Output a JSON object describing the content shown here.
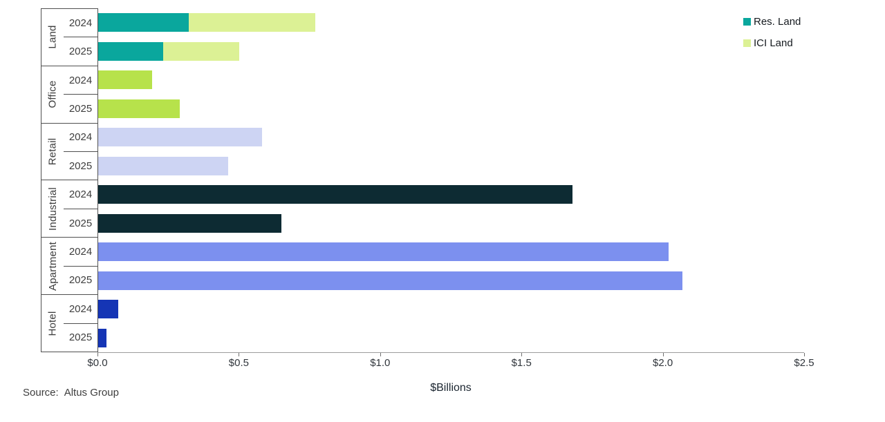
{
  "legend": {
    "items": [
      {
        "label": "Res. Land",
        "color": "#0aa79d"
      },
      {
        "label": "ICI Land",
        "color": "#dcf195"
      }
    ]
  },
  "x_axis": {
    "title": "$Billions",
    "ticks": [
      "$0.0",
      "$0.5",
      "$1.0",
      "$1.5",
      "$2.0",
      "$2.5"
    ],
    "min": 0,
    "max": 2.5
  },
  "source": {
    "prefix": "Source:",
    "text": "Altus Group"
  },
  "chart_data": {
    "type": "bar",
    "orientation": "horizontal",
    "unit": "$Billions",
    "xlabel": "$Billions",
    "xlim": [
      0,
      2.5
    ],
    "grid": false,
    "legend_position": "top-right",
    "legend_series": [
      "Res. Land",
      "ICI Land"
    ],
    "groups": [
      {
        "sector": "Land",
        "rows": [
          {
            "year": "2024",
            "segments": [
              {
                "series": "Res. Land",
                "value": 0.32,
                "color": "#0aa79d"
              },
              {
                "series": "ICI Land",
                "value": 0.45,
                "color": "#dcf195"
              }
            ]
          },
          {
            "year": "2025",
            "segments": [
              {
                "series": "Res. Land",
                "value": 0.23,
                "color": "#0aa79d"
              },
              {
                "series": "ICI Land",
                "value": 0.27,
                "color": "#dcf195"
              }
            ]
          }
        ]
      },
      {
        "sector": "Office",
        "rows": [
          {
            "year": "2024",
            "segments": [
              {
                "series": "Office",
                "value": 0.19,
                "color": "#b7e24b"
              }
            ]
          },
          {
            "year": "2025",
            "segments": [
              {
                "series": "Office",
                "value": 0.29,
                "color": "#b7e24b"
              }
            ]
          }
        ]
      },
      {
        "sector": "Retail",
        "rows": [
          {
            "year": "2024",
            "segments": [
              {
                "series": "Retail",
                "value": 0.58,
                "color": "#cdd4f3"
              }
            ]
          },
          {
            "year": "2025",
            "segments": [
              {
                "series": "Retail",
                "value": 0.46,
                "color": "#cdd4f3"
              }
            ]
          }
        ]
      },
      {
        "sector": "Industrial",
        "rows": [
          {
            "year": "2024",
            "segments": [
              {
                "series": "Industrial",
                "value": 1.68,
                "color": "#0d2b33"
              }
            ]
          },
          {
            "year": "2025",
            "segments": [
              {
                "series": "Industrial",
                "value": 0.65,
                "color": "#0d2b33"
              }
            ]
          }
        ]
      },
      {
        "sector": "Apartment",
        "rows": [
          {
            "year": "2024",
            "segments": [
              {
                "series": "Apartment",
                "value": 2.02,
                "color": "#7c90ef"
              }
            ]
          },
          {
            "year": "2025",
            "segments": [
              {
                "series": "Apartment",
                "value": 2.07,
                "color": "#7c90ef"
              }
            ]
          }
        ]
      },
      {
        "sector": "Hotel",
        "rows": [
          {
            "year": "2024",
            "segments": [
              {
                "series": "Hotel",
                "value": 0.07,
                "color": "#1535b5"
              }
            ]
          },
          {
            "year": "2025",
            "segments": [
              {
                "series": "Hotel",
                "value": 0.03,
                "color": "#1535b5"
              }
            ]
          }
        ]
      }
    ]
  }
}
